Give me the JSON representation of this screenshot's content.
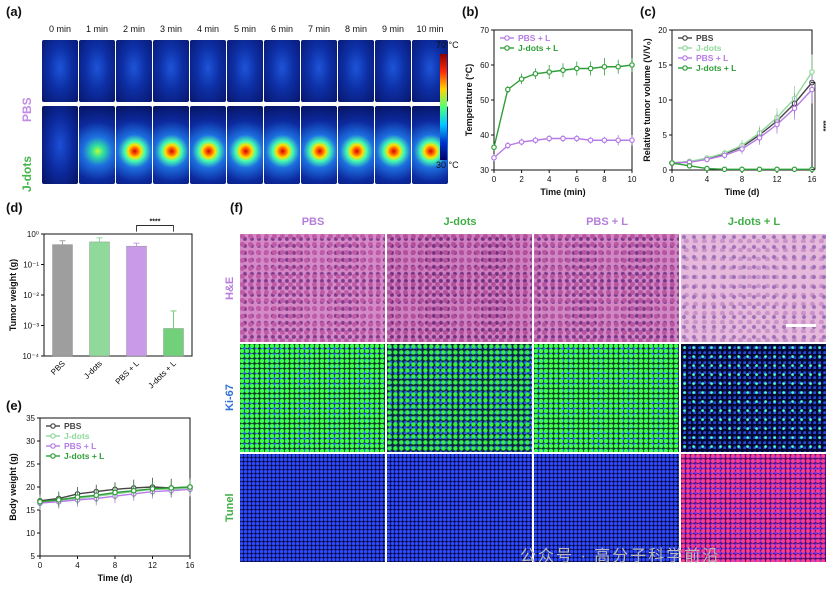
{
  "panels": {
    "a": {
      "label": "(a)",
      "times": [
        "0 min",
        "1 min",
        "2 min",
        "3 min",
        "4 min",
        "5 min",
        "6 min",
        "7 min",
        "8 min",
        "9 min",
        "10 min"
      ],
      "rows": [
        "PBS",
        "J-dots"
      ],
      "scale_max": "70 °C",
      "scale_min": "30 °C",
      "colors": {
        "PBS": "#c38be6",
        "J-dots": "#45b649"
      }
    },
    "b": {
      "label": "(b)"
    },
    "c": {
      "label": "(c)"
    },
    "d": {
      "label": "(d)"
    },
    "e": {
      "label": "(e)"
    },
    "f": {
      "label": "(f)",
      "columns": [
        "PBS",
        "J-dots",
        "PBS + L",
        "J-dots + L"
      ],
      "rows": [
        "H&E",
        "Ki-67",
        "Tunel"
      ],
      "col_colors": [
        "#b57edc",
        "#3fae46",
        "#b57edc",
        "#3fae46"
      ],
      "row_colors": [
        "#b57edc",
        "#2f6fd6",
        "#3fae46"
      ]
    }
  },
  "chart_data": [
    {
      "panel": "b",
      "type": "line",
      "xlabel": "Time (min)",
      "ylabel": "Temperature (°C)",
      "xlim": [
        0,
        10
      ],
      "ylim": [
        30,
        70
      ],
      "xticks": [
        0,
        2,
        4,
        6,
        8,
        10
      ],
      "yticks": [
        30,
        40,
        50,
        60,
        70
      ],
      "legend_position": "top-left",
      "series": [
        {
          "name": "PBS + L",
          "color": "#b67be6",
          "x": [
            0,
            1,
            2,
            3,
            4,
            5,
            6,
            7,
            8,
            9,
            10
          ],
          "values": [
            33.5,
            37,
            38,
            38.5,
            39,
            39,
            39,
            38.5,
            38.5,
            38.5,
            38.5
          ],
          "err": [
            1,
            1,
            1,
            1,
            1,
            1,
            1,
            1,
            1,
            1.5,
            1.5
          ]
        },
        {
          "name": "J-dots + L",
          "color": "#2f9e38",
          "x": [
            0,
            1,
            2,
            3,
            4,
            5,
            6,
            7,
            8,
            9,
            10
          ],
          "values": [
            36.5,
            53,
            56,
            57.5,
            58,
            58.5,
            59,
            59,
            59.5,
            59.5,
            60
          ],
          "err": [
            1,
            1,
            1.5,
            1.5,
            2,
            2,
            2,
            2,
            2.5,
            2,
            2
          ]
        }
      ]
    },
    {
      "panel": "c",
      "type": "line",
      "xlabel": "Time (d)",
      "ylabel": "Relative tumor volume (V/V₀)",
      "xlim": [
        0,
        16
      ],
      "ylim": [
        0,
        20
      ],
      "xticks": [
        0,
        4,
        8,
        12,
        16
      ],
      "yticks": [
        0,
        5,
        10,
        15,
        20
      ],
      "legend_position": "top-left",
      "annotation": "****",
      "series": [
        {
          "name": "PBS",
          "color": "#444444",
          "x": [
            0,
            2,
            4,
            6,
            8,
            10,
            12,
            14,
            16
          ],
          "values": [
            1,
            1.2,
            1.6,
            2.3,
            3.3,
            5,
            7,
            9.5,
            12.5
          ],
          "err": [
            0.2,
            0.3,
            0.4,
            0.5,
            0.7,
            1,
            1.2,
            1.5,
            2
          ]
        },
        {
          "name": "J-dots",
          "color": "#8fd99a",
          "x": [
            0,
            2,
            4,
            6,
            8,
            10,
            12,
            14,
            16
          ],
          "values": [
            1,
            1.2,
            1.7,
            2.4,
            3.5,
            5.3,
            7.5,
            10.2,
            14
          ],
          "err": [
            0.2,
            0.3,
            0.4,
            0.5,
            0.8,
            1,
            1.3,
            1.8,
            2.5
          ]
        },
        {
          "name": "PBS + L",
          "color": "#b67be6",
          "x": [
            0,
            2,
            4,
            6,
            8,
            10,
            12,
            14,
            16
          ],
          "values": [
            1,
            1.1,
            1.5,
            2.1,
            3,
            4.6,
            6.5,
            8.8,
            11.5
          ],
          "err": [
            0.2,
            0.3,
            0.4,
            0.5,
            0.7,
            1,
            1.3,
            1.6,
            2
          ]
        },
        {
          "name": "J-dots + L",
          "color": "#2f9e38",
          "x": [
            0,
            2,
            4,
            6,
            8,
            10,
            12,
            14,
            16
          ],
          "values": [
            1,
            0.6,
            0.2,
            0.1,
            0.1,
            0.1,
            0.1,
            0.1,
            0.1
          ],
          "err": [
            0.1,
            0.1,
            0.05,
            0.05,
            0.05,
            0.05,
            0.05,
            0.05,
            0.05
          ]
        }
      ]
    },
    {
      "panel": "d",
      "type": "bar",
      "ylabel": "Tumor weight (g)",
      "yscale": "log",
      "ylim": [
        0.0001,
        1
      ],
      "yticks": [
        "10⁻⁴",
        "10⁻³",
        "10⁻²",
        "10⁻¹",
        "10⁰"
      ],
      "categories": [
        "PBS",
        "J-dots",
        "PBS + L",
        "J-dots + L"
      ],
      "values": [
        0.45,
        0.55,
        0.4,
        0.0008
      ],
      "err_upper": [
        0.6,
        0.75,
        0.5,
        0.003
      ],
      "colors": [
        "#9e9e9e",
        "#8fd99a",
        "#c89ae8",
        "#73d07a"
      ],
      "annotation": "****"
    },
    {
      "panel": "e",
      "type": "line",
      "xlabel": "Time (d)",
      "ylabel": "Body weight (g)",
      "xlim": [
        0,
        16
      ],
      "ylim": [
        5,
        35
      ],
      "xticks": [
        0,
        4,
        8,
        12,
        16
      ],
      "yticks": [
        5,
        10,
        15,
        20,
        25,
        30,
        35
      ],
      "legend_position": "top-left",
      "series": [
        {
          "name": "PBS",
          "color": "#444444",
          "x": [
            0,
            2,
            4,
            6,
            8,
            10,
            12,
            14,
            16
          ],
          "values": [
            17,
            17.5,
            18.5,
            19,
            19.5,
            19.8,
            20,
            19.8,
            20
          ],
          "err": [
            1.5,
            1.5,
            1.5,
            1.5,
            1.5,
            1.8,
            2,
            2,
            2
          ]
        },
        {
          "name": "J-dots",
          "color": "#8fd99a",
          "x": [
            0,
            2,
            4,
            6,
            8,
            10,
            12,
            14,
            16
          ],
          "values": [
            16.5,
            17,
            17.5,
            18,
            18.5,
            19,
            19.5,
            19.5,
            19.8
          ],
          "err": [
            1.5,
            1.5,
            1.5,
            1.5,
            1.5,
            1.5,
            1.5,
            1.8,
            1.8
          ]
        },
        {
          "name": "PBS + L",
          "color": "#b67be6",
          "x": [
            0,
            2,
            4,
            6,
            8,
            10,
            12,
            14,
            16
          ],
          "values": [
            16.5,
            16.8,
            17.2,
            17.5,
            18,
            18.5,
            19,
            19.2,
            19.5
          ],
          "err": [
            1.5,
            1.5,
            1.5,
            1.5,
            1.5,
            1.5,
            1.5,
            1.5,
            1.5
          ]
        },
        {
          "name": "J-dots + L",
          "color": "#2f9e38",
          "x": [
            0,
            2,
            4,
            6,
            8,
            10,
            12,
            14,
            16
          ],
          "values": [
            16.8,
            17.2,
            17.8,
            18.2,
            18.8,
            19.2,
            19.6,
            19.8,
            20
          ],
          "err": [
            1.5,
            1.5,
            1.5,
            1.5,
            1.5,
            1.5,
            1.5,
            1.5,
            1.5
          ]
        }
      ]
    }
  ],
  "watermark": "公众号 · 高分子科学前沿"
}
